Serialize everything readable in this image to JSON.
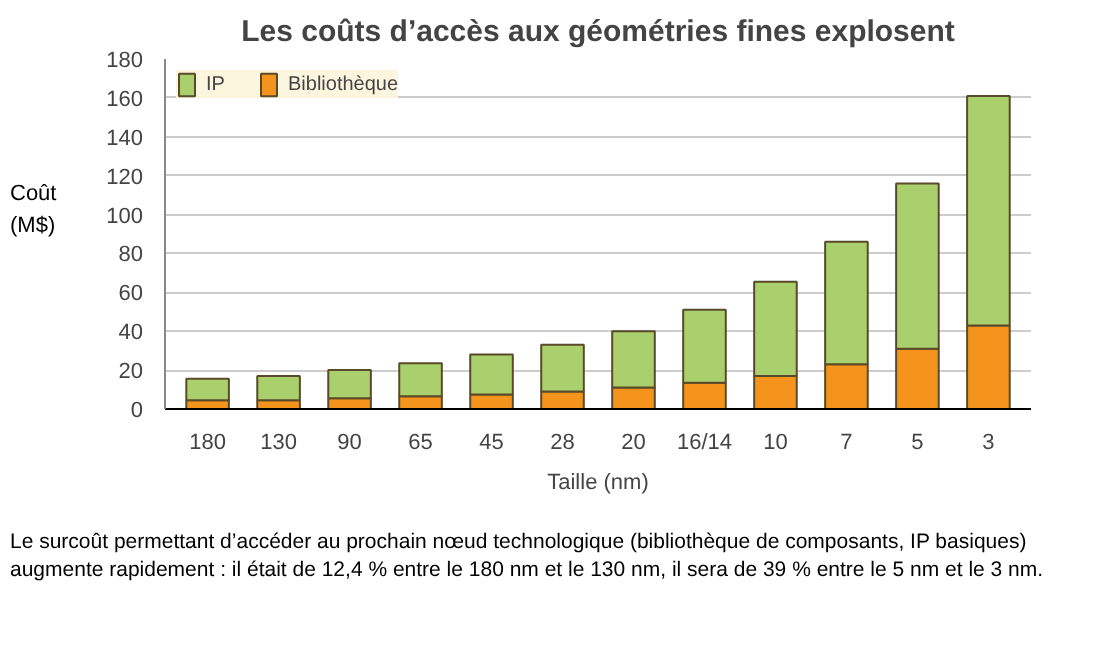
{
  "chart_data": {
    "type": "bar",
    "stacked": true,
    "title": "Les coûts d’accès aux géométries fines explosent",
    "xlabel": "Taille (nm)",
    "ylabel": "Coût\n(M$)",
    "categories": [
      "180",
      "130",
      "90",
      "65",
      "45",
      "28",
      "20",
      "16/14",
      "10",
      "7",
      "5",
      "3"
    ],
    "series": [
      {
        "name": "Bibliothèque",
        "color": "#f4941d",
        "values": [
          4.5,
          4.5,
          5.5,
          6.5,
          7.5,
          9,
          11,
          13.5,
          17,
          23,
          31,
          43
        ]
      },
      {
        "name": "IP",
        "color": "#a9d06d",
        "values": [
          11,
          12.5,
          14.5,
          17,
          20.5,
          24,
          29,
          37.5,
          48.5,
          63,
          85,
          118
        ]
      }
    ],
    "ylim": [
      0,
      180
    ],
    "yticks": [
      0,
      20,
      40,
      60,
      80,
      100,
      120,
      140,
      160,
      180
    ],
    "grid": "y",
    "legend": "top left",
    "annotations": [
      "Le surcoût permettant d’accéder au prochain nœud technologique (bibliothèque de composants, IP basiques) augmente rapidement : il était de 12,4 % entre le 180 nm et le 130 nm, il sera de 39 % entre le 5 nm et le 3 nm."
    ]
  }
}
